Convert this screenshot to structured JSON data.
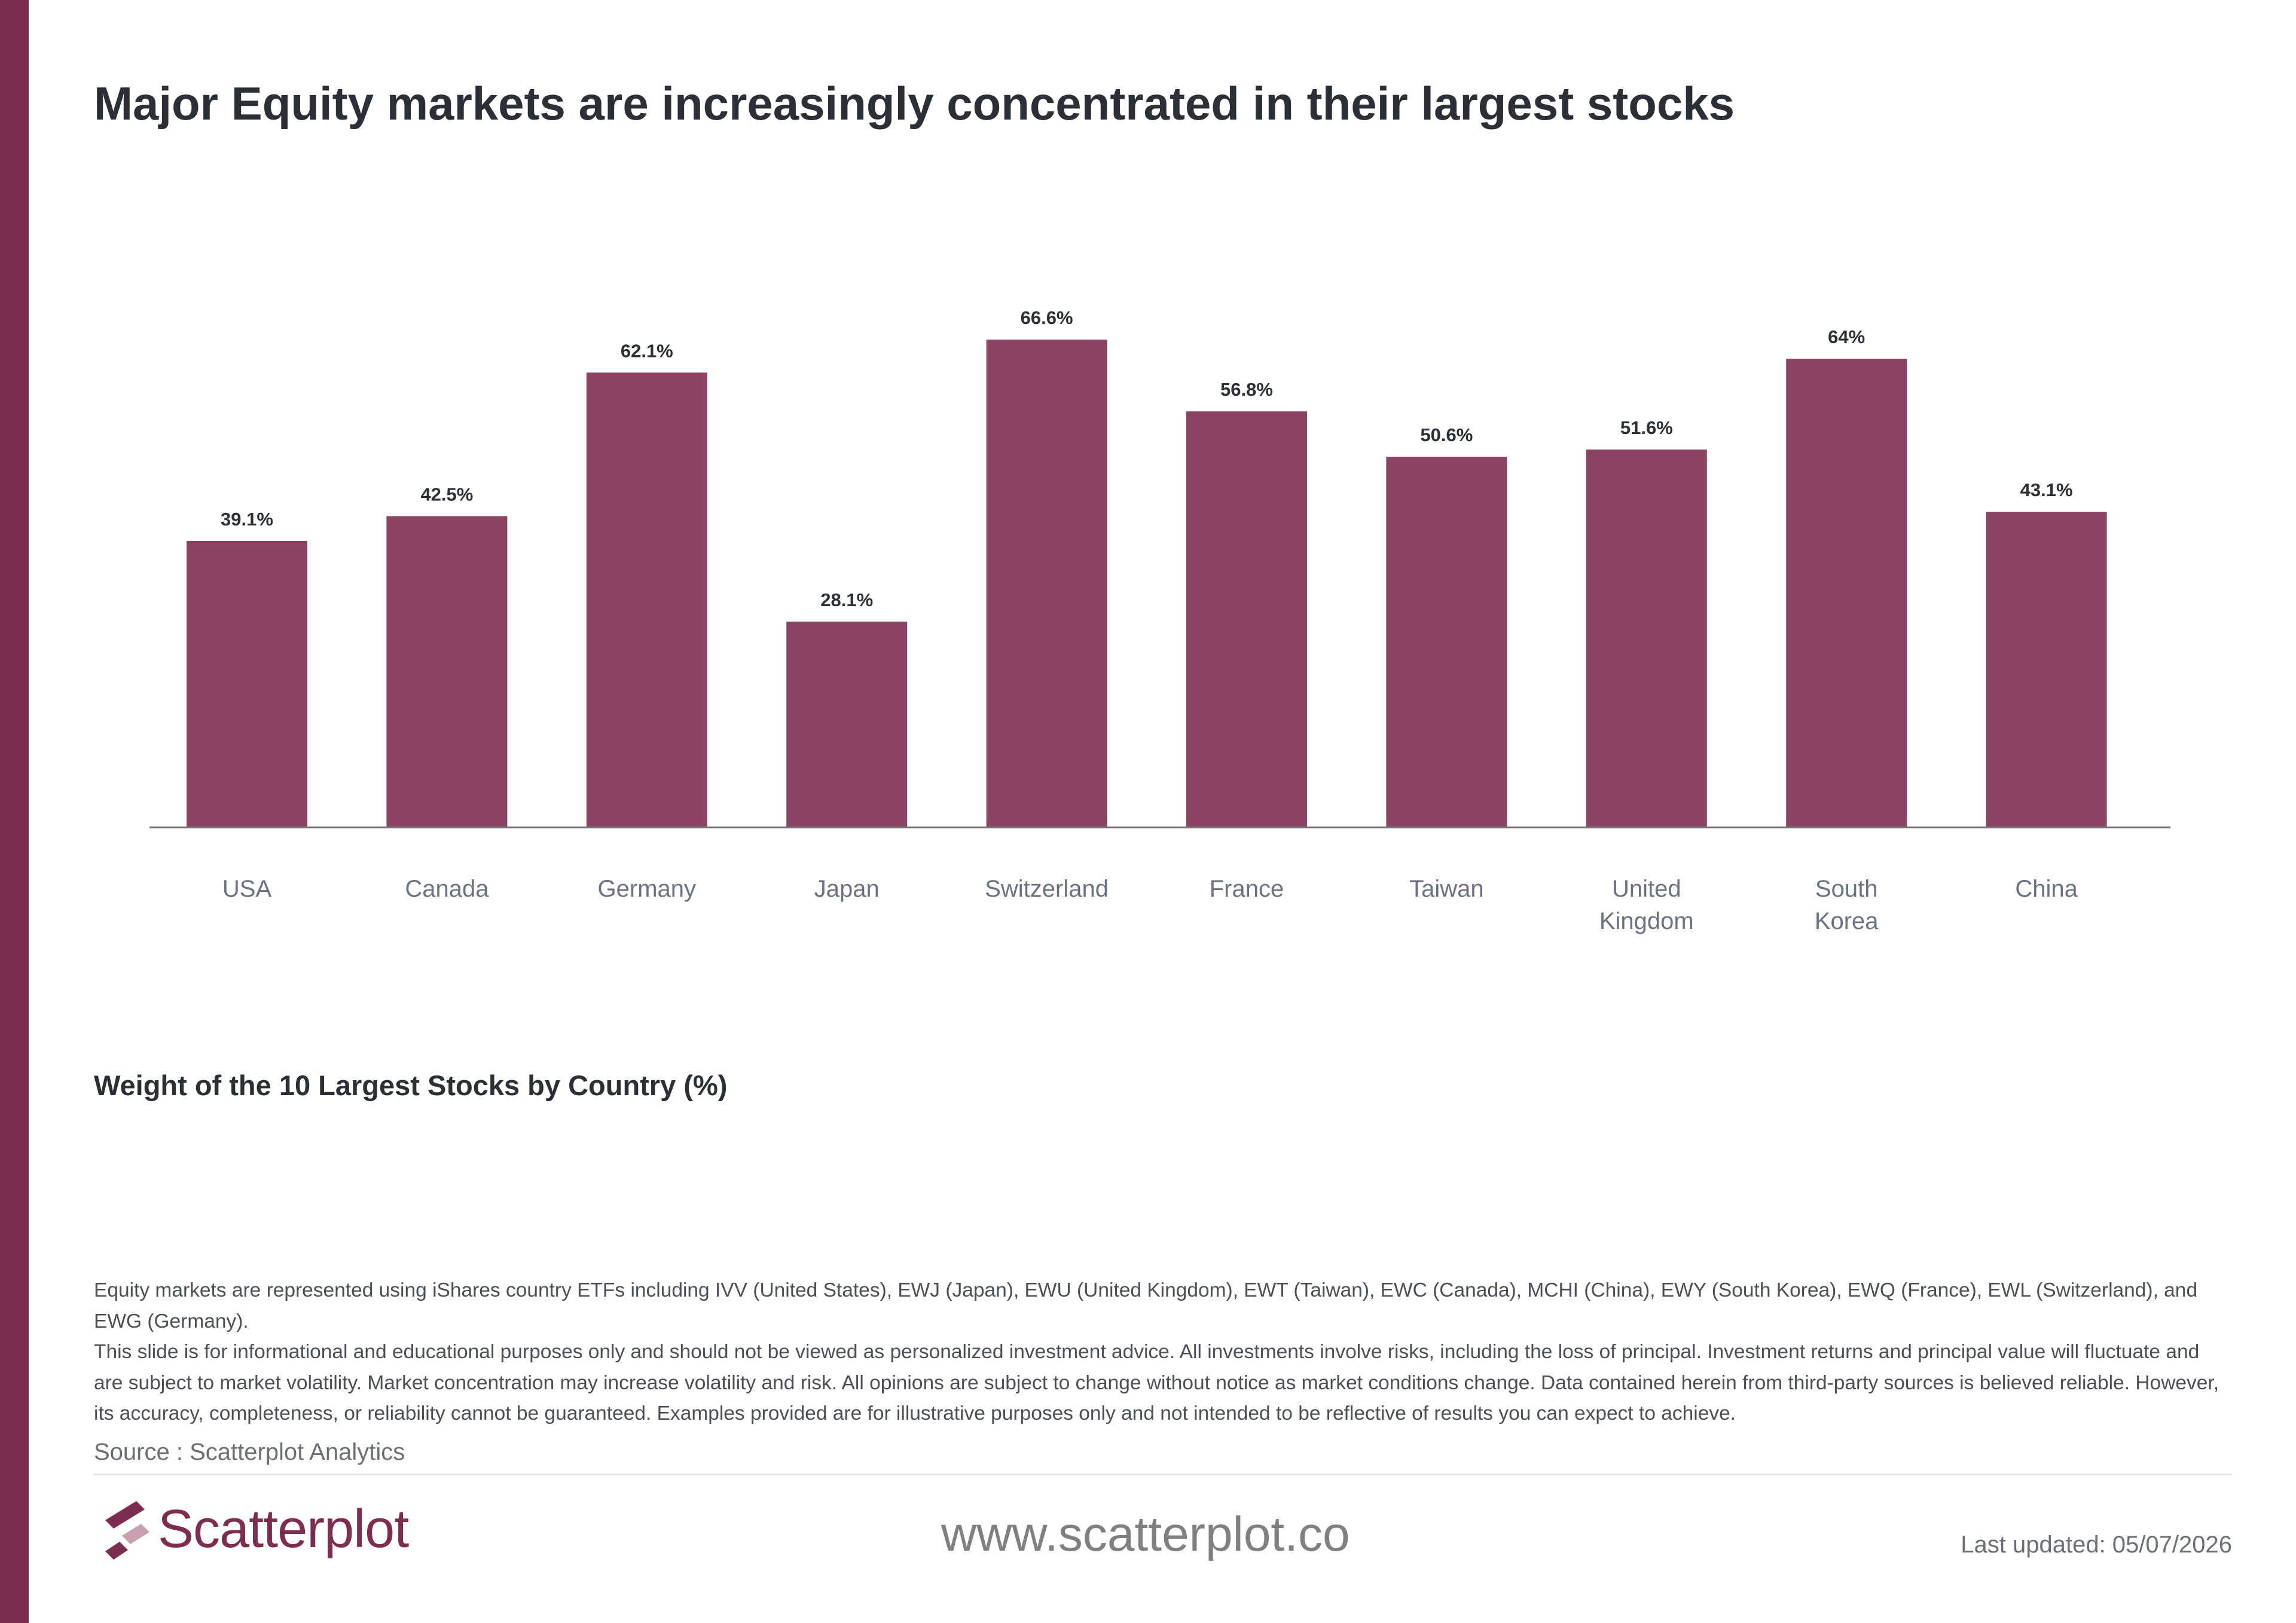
{
  "title": "Major Equity markets are increasingly concentrated in their largest stocks",
  "subtitle": "Weight of the 10 Largest Stocks by Country (%)",
  "chart_data": {
    "type": "bar",
    "categories": [
      "USA",
      "Canada",
      "Germany",
      "Japan",
      "Switzerland",
      "France",
      "Taiwan",
      "United Kingdom",
      "South Korea",
      "China"
    ],
    "category_lines": [
      [
        "USA"
      ],
      [
        "Canada"
      ],
      [
        "Germany"
      ],
      [
        "Japan"
      ],
      [
        "Switzerland"
      ],
      [
        "France"
      ],
      [
        "Taiwan"
      ],
      [
        "United",
        "Kingdom"
      ],
      [
        "South",
        "Korea"
      ],
      [
        "China"
      ]
    ],
    "values": [
      39.1,
      42.5,
      62.1,
      28.1,
      66.6,
      56.8,
      50.6,
      51.6,
      64,
      43.1
    ],
    "value_labels": [
      "39.1%",
      "42.5%",
      "62.1%",
      "28.1%",
      "66.6%",
      "56.8%",
      "50.6%",
      "51.6%",
      "64%",
      "43.1%"
    ],
    "bar_color": "#8e4265",
    "ylim": [
      0,
      100
    ],
    "grid": false,
    "legend": false
  },
  "footnotes": [
    "Equity markets are represented using iShares country ETFs including IVV (United States), EWJ (Japan), EWU (United Kingdom), EWT (Taiwan), EWC (Canada), MCHI (China), EWY (South Korea), EWQ (France), EWL (Switzerland), and EWG (Germany).",
    "This slide is for informational and educational purposes only and should not be viewed as personalized investment advice. All investments involve risks, including the loss of principal. Investment returns and principal value will fluctuate and are subject to market volatility. Market concentration may increase volatility and risk. All opinions are subject to change without notice as market conditions change. Data contained herein from third-party sources is believed reliable. However, its accuracy, completeness, or reliability cannot be guaranteed. Examples provided are for illustrative purposes only and not intended to be reflective of results you can expect to achieve."
  ],
  "source": "Source : Scatterplot Analytics",
  "footer": {
    "brand": "Scatterplot",
    "website": "www.scatterplot.co",
    "last_updated": "Last updated: 05/07/2026"
  },
  "colors": {
    "accent": "#7d2e50",
    "bar": "#8e4265",
    "title_text": "#2b2f36",
    "axis_label_text": "#6b7280"
  },
  "icons": {
    "logo": "scatterplot-logo-icon"
  }
}
